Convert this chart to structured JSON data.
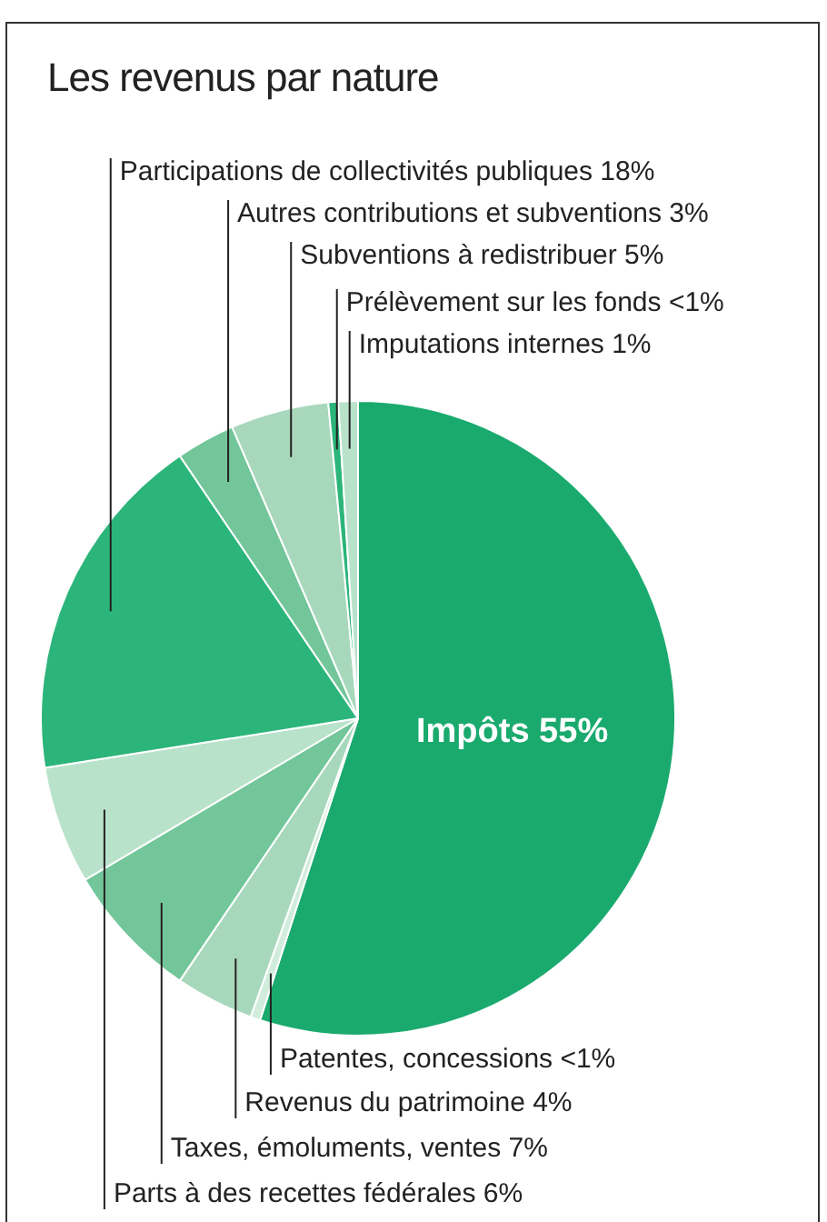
{
  "chart_data": {
    "type": "pie",
    "title": "Les revenus par nature",
    "categories": [
      "Impôts",
      "Patentes, concessions",
      "Revenus du patrimoine",
      "Taxes, émoluments, ventes",
      "Parts à des recettes fédérales",
      "Participations de collectivités publiques",
      "Autres contributions et subventions",
      "Subventions à redistribuer",
      "Prélèvement sur les fonds",
      "Imputations internes"
    ],
    "values": [
      55,
      0.5,
      4,
      7,
      6,
      18,
      3,
      5,
      0.5,
      1
    ],
    "value_labels": [
      "55%",
      "<1%",
      "4%",
      "7%",
      "6%",
      "18%",
      "3%",
      "5%",
      "<1%",
      "1%"
    ],
    "colors": [
      "#1aaa6e",
      "#d2ecdc",
      "#a8d8bc",
      "#72c69a",
      "#b9e2cb",
      "#2cb57a",
      "#72c69a",
      "#a8d8bc",
      "#2cb57a",
      "#b9e2cb"
    ],
    "legend": false
  }
}
